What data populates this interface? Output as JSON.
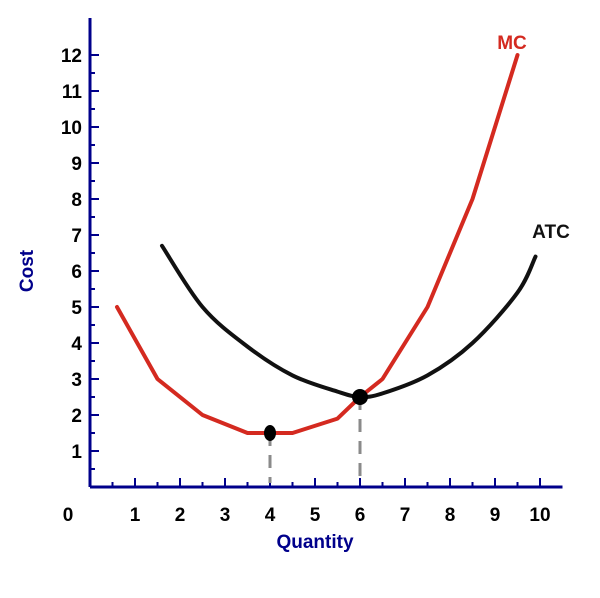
{
  "chart_data": {
    "type": "line",
    "title": "",
    "xlabel": "Quantity",
    "ylabel": "Cost",
    "origin_label": "0",
    "xlim": [
      0,
      10.5
    ],
    "ylim": [
      0,
      13
    ],
    "x_ticks": [
      1,
      2,
      3,
      4,
      5,
      6,
      7,
      8,
      9,
      10
    ],
    "y_ticks": [
      1,
      2,
      3,
      4,
      5,
      6,
      7,
      8,
      9,
      10,
      11,
      12
    ],
    "colors": {
      "axis": "#00008b",
      "mc": "#d42a20",
      "atc": "#111111",
      "guide": "#8a8a8a"
    },
    "series": [
      {
        "name": "MC",
        "color": "#d42a20",
        "points": [
          [
            0.6,
            5.0
          ],
          [
            1.5,
            3.0
          ],
          [
            2.5,
            2.0
          ],
          [
            3.5,
            1.5
          ],
          [
            4.0,
            1.5
          ],
          [
            4.5,
            1.5
          ],
          [
            5.5,
            1.9
          ],
          [
            6.0,
            2.5
          ],
          [
            6.5,
            3.0
          ],
          [
            7.5,
            5.0
          ],
          [
            8.5,
            8.0
          ],
          [
            9.5,
            12.0
          ]
        ]
      },
      {
        "name": "ATC",
        "color": "#111111",
        "points": [
          [
            1.6,
            6.7
          ],
          [
            2.5,
            5.0
          ],
          [
            3.5,
            3.9
          ],
          [
            4.5,
            3.1
          ],
          [
            5.5,
            2.65
          ],
          [
            6.0,
            2.5
          ],
          [
            6.5,
            2.6
          ],
          [
            7.5,
            3.1
          ],
          [
            8.5,
            4.0
          ],
          [
            9.5,
            5.4
          ],
          [
            9.9,
            6.4
          ]
        ]
      }
    ],
    "markers": [
      {
        "name": "mc-minimum",
        "x": 4,
        "y": 1.5
      },
      {
        "name": "mc-atc-intersection",
        "x": 6,
        "y": 2.5
      }
    ],
    "guides": [
      {
        "x": 4,
        "y": 1.5
      },
      {
        "x": 6,
        "y": 2.5
      }
    ]
  }
}
